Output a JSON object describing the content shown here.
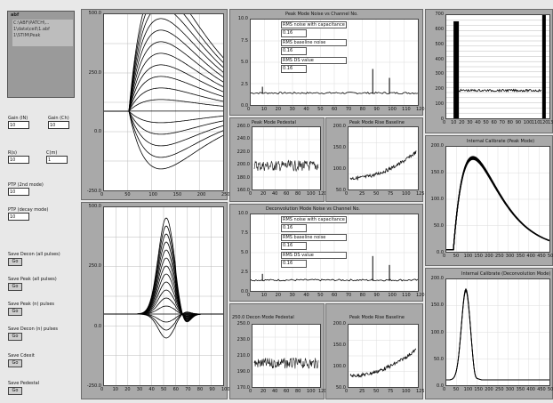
{
  "sidebar": {
    "info_header": "abf",
    "info_body": "C:\\ABF\\PATCH\\...\n1\\data\\cell\\1.abf\n1\\STIM\\Peak",
    "controls": [
      {
        "label": "Gain (IN)",
        "value": "10"
      },
      {
        "label": "Gain (Ch)",
        "value": "10"
      },
      {
        "label": "R(s)",
        "value": "10"
      },
      {
        "label": "C(m)",
        "value": "1"
      },
      {
        "label": "PTP (2nd mode)",
        "value": "10"
      },
      {
        "label": "PTP (decay mode)",
        "value": "10"
      }
    ],
    "buttons": [
      {
        "label": "Save Decon (all pulses)",
        "btn": "Go"
      },
      {
        "label": "Save Peak (all pulses)",
        "btn": "Go"
      },
      {
        "label": "Save Peak (n) pulses",
        "btn": "Go"
      },
      {
        "label": "Save Decon (n) pulses",
        "btn": "Go"
      },
      {
        "label": "Save Cdexit",
        "btn": "Go"
      },
      {
        "label": "Save Pedestal",
        "btn": "Go"
      }
    ]
  },
  "panels": {
    "top_left": {
      "y_ticks": [
        "500.0",
        "250.0",
        "0.0",
        "-250.0"
      ],
      "x_ticks": [
        "0",
        "50",
        "100",
        "150",
        "200",
        "250"
      ]
    },
    "bottom_left": {
      "y_ticks": [
        "500.0",
        "250.0",
        "0.0",
        "-250.0"
      ],
      "x_ticks": [
        "0",
        "10",
        "20",
        "30",
        "40",
        "50",
        "60",
        "70",
        "80",
        "90",
        "100"
      ]
    },
    "peak_noise": {
      "title": "Peak Mode Noise vs Channel No.",
      "labels": [
        "RMS noise with capacitance",
        "RMS baseline noise",
        "RMS DS value"
      ],
      "values": [
        "0.16",
        "0.16",
        "0.16"
      ],
      "y_ticks": [
        "10.0",
        "7.5",
        "5.0",
        "2.5",
        "0.0"
      ],
      "x_ticks": [
        "0",
        "10",
        "20",
        "30",
        "40",
        "50",
        "60",
        "70",
        "80",
        "90",
        "100",
        "110",
        "120"
      ]
    },
    "decon_noise": {
      "title": "Deconvolution Mode Noise vs Channel No.",
      "labels": [
        "RMS noise with capacitance",
        "RMS baseline noise",
        "RMS DS value"
      ],
      "values": [
        "0.16",
        "0.16",
        "0.16"
      ],
      "y_ticks": [
        "10.0",
        "7.5",
        "5.0",
        "2.5",
        "0.0"
      ],
      "x_ticks": [
        "0",
        "10",
        "20",
        "30",
        "40",
        "50",
        "60",
        "70",
        "80",
        "90",
        "100",
        "110",
        "120"
      ]
    },
    "peak_ped": {
      "title": "Peak Mode Pedestal",
      "y_ticks": [
        "260.0",
        "240.0",
        "220.0",
        "200.0",
        "180.0",
        "160.0"
      ],
      "x_ticks": [
        "0",
        "20",
        "40",
        "60",
        "80",
        "100",
        "120"
      ]
    },
    "peak_rise": {
      "title": "Peak Mode Rise Baseline",
      "y_ticks": [
        "200.0",
        "150.0",
        "100.0",
        "50.0"
      ],
      "x_ticks": [
        "0",
        "25",
        "50",
        "75",
        "100",
        "125"
      ]
    },
    "decon_ped": {
      "title": "250.0  Decon Mode Pedestal",
      "y_ticks": [
        "250.0",
        "230.0",
        "210.0",
        "190.0",
        "170.0"
      ],
      "x_ticks": [
        "0",
        "20",
        "40",
        "60",
        "80",
        "100",
        "120"
      ]
    },
    "decon_rise": {
      "title": "Peak Mode Rise Baseline",
      "y_ticks": [
        "200.0",
        "150.0",
        "100.0",
        "50.0"
      ],
      "x_ticks": [
        "0",
        "25",
        "50",
        "75",
        "100",
        "125"
      ]
    },
    "top_right": {
      "y_ticks": [
        "700",
        "600",
        "500",
        "400",
        "300",
        "200",
        "100",
        "0"
      ],
      "x_ticks": [
        "0",
        "10",
        "20",
        "30",
        "40",
        "50",
        "60",
        "70",
        "80",
        "90",
        "100",
        "110",
        "120",
        "130"
      ]
    },
    "calib_peak": {
      "title": "Internal Calibrate (Peak Mode)",
      "y_ticks": [
        "200.0",
        "150.0",
        "100.0",
        "50.0",
        "0.0"
      ],
      "x_ticks": [
        "0",
        "50",
        "100",
        "150",
        "200",
        "250",
        "300",
        "350",
        "400",
        "450",
        "500"
      ]
    },
    "calib_decon": {
      "title": "Internal Calibrate (Deconvolution Mode)",
      "y_ticks": [
        "200.0",
        "150.0",
        "100.0",
        "50.0",
        "0.0"
      ],
      "x_ticks": [
        "0",
        "50",
        "100",
        "150",
        "200",
        "250",
        "300",
        "350",
        "400",
        "450",
        "500"
      ]
    }
  }
}
